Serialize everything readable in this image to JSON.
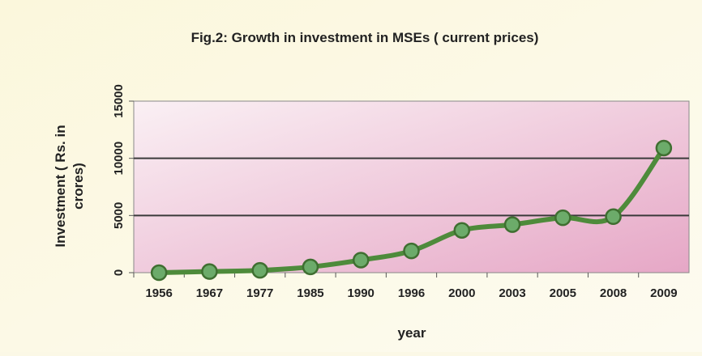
{
  "chart_data": {
    "type": "line",
    "title": "Fig.2:  Growth in investment in MSEs ( current prices)",
    "xlabel": "year",
    "ylabel_line1": "Investment ( Rs. in",
    "ylabel_line2": "crores)",
    "categories": [
      "1956",
      "1967",
      "1977",
      "1985",
      "1990",
      "1996",
      "2000",
      "2003",
      "2005",
      "2008",
      "2009"
    ],
    "series": [
      {
        "values": [
          0,
          100,
          200,
          500,
          1100,
          1900,
          3700,
          4200,
          4800,
          4900,
          10900
        ]
      }
    ],
    "ylim": [
      0,
      15000
    ],
    "yticks": [
      0,
      5000,
      10000,
      15000
    ],
    "grid": true,
    "colors": {
      "line": "#4e8b3b",
      "marker_fill": "#6cab6a",
      "marker_stroke": "#3f6f31",
      "plot_bg_light": "#faf0f4",
      "plot_bg_dark": "#e6a7c6",
      "gridline": "#3a3a3a",
      "text": "#222222"
    }
  }
}
